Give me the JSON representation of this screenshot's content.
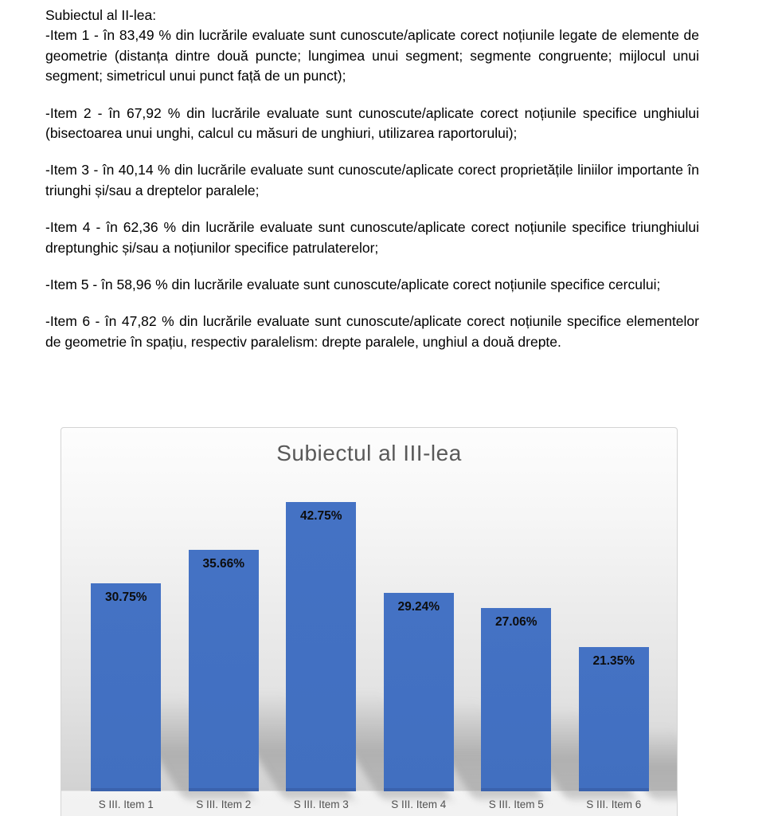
{
  "document": {
    "heading": "Subiectul al II-lea:",
    "items": [
      {
        "text": "-Item 1 - în 83,49 % din lucrările evaluate sunt cunoscute/aplicate corect noțiunile legate de elemente de geometrie (distanța dintre două puncte; lungimea unui segment; segmente congruente; mijlocul unui segment; simetricul unui punct față de un punct);"
      },
      {
        "text": "-Item 2 - în 67,92 % din lucrările evaluate sunt cunoscute/aplicate corect noțiunile specifice unghiului (bisectoarea unui unghi, calcul cu măsuri de unghiuri, utilizarea raportorului);"
      },
      {
        "text": "-Item 3 - în 40,14 % din lucrările evaluate sunt cunoscute/aplicate corect proprietățile liniilor importante în triunghi și/sau a dreptelor paralele;"
      },
      {
        "text": "-Item 4 - în 62,36 % din lucrările evaluate sunt cunoscute/aplicate corect noțiunile specifice triunghiului dreptunghic și/sau a noțiunilor specifice patrulaterelor;"
      },
      {
        "text": "-Item 5 - în 58,96 % din lucrările evaluate sunt cunoscute/aplicate corect noțiunile specifice cercului;"
      },
      {
        "text": "-Item 6 - în 47,82 % din lucrările evaluate sunt cunoscute/aplicate corect noțiunile specifice elementelor de geometrie în spațiu, respectiv paralelism: drepte paralele, unghiul a două drepte."
      }
    ]
  },
  "chart_data": {
    "type": "bar",
    "title": "Subiectul al III-lea",
    "title_color": "#595959",
    "categories": [
      "S III. Item 1",
      "S III. Item 2",
      "S III. Item 3",
      "S III. Item 4",
      "S III. Item 5",
      "S III. Item 6"
    ],
    "values": [
      30.75,
      35.66,
      42.75,
      29.24,
      27.06,
      21.35
    ],
    "value_labels": [
      "30.75%",
      "35.66%",
      "42.75%",
      "29.24%",
      "27.06%",
      "21.35%"
    ],
    "bar_color": "#4472c4",
    "xlabel": "",
    "ylabel": "",
    "ylim": [
      0,
      45
    ],
    "grid": false,
    "legend": "none",
    "data_labels": "inside-end",
    "effects": "perspective-shadow-bottom-right"
  }
}
